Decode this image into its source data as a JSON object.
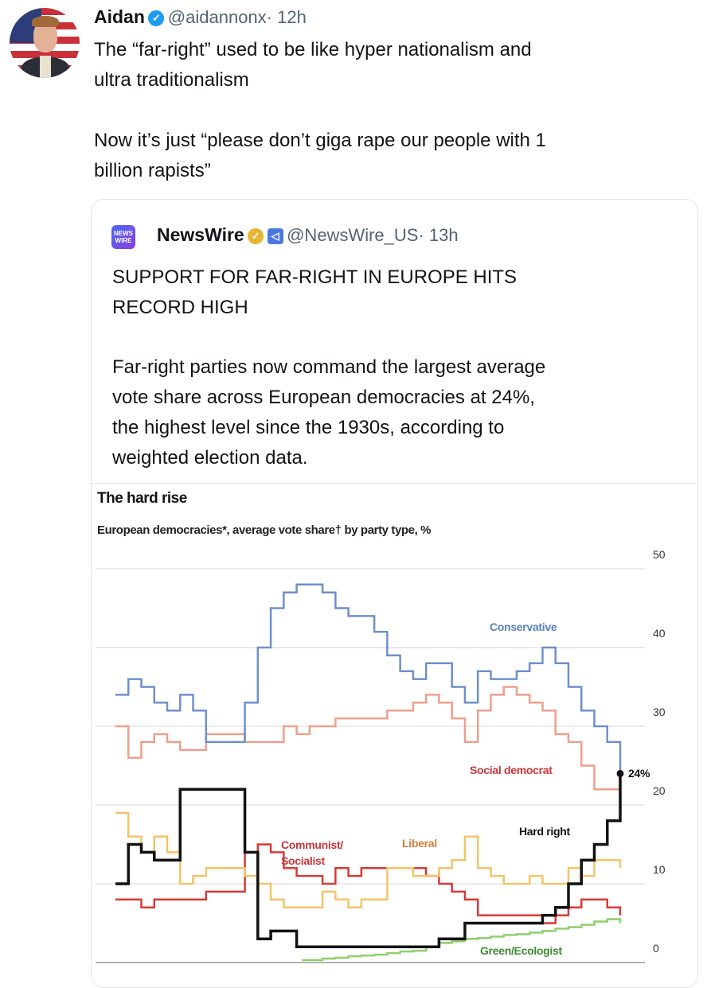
{
  "tweet": {
    "author_name": "Aidan",
    "verified_icon": "verified-badge-icon",
    "handle": "@aidannonx",
    "time": "· 12h",
    "text_lines": [
      "The “far-right” used to be like hyper nationalism and",
      "ultra traditionalism",
      "Now it’s just “please don’t giga rape our people with 1",
      "billion rapists”"
    ]
  },
  "quote": {
    "logo_text": [
      "NEWS",
      "WIRE"
    ],
    "author_name": "NewsWire",
    "handle": "@NewsWire_US",
    "time": "· 13h",
    "headline_lines": [
      "SUPPORT FOR FAR-RIGHT IN EUROPE HITS",
      "RECORD HIGH"
    ],
    "body_lines": [
      "Far-right parties now command the largest average",
      "vote share across European democracies at 24%,",
      "the highest level since the 1930s, according to",
      "weighted election data."
    ]
  },
  "chart_data": {
    "type": "line",
    "title": "The hard rise",
    "subtitle": "European democracies*, average vote share† by party type, %",
    "ylim": [
      0,
      50
    ],
    "yticks": [
      "50",
      "40",
      "30",
      "20",
      "10",
      "0"
    ],
    "grid": true,
    "y_axis_side": "right",
    "end_label": "24%",
    "series": [
      {
        "name": "Conservative",
        "color": "#6f8fcb",
        "values": [
          34,
          36,
          35,
          33,
          32,
          34,
          32,
          28,
          28,
          28,
          33,
          40,
          45,
          47,
          48,
          48,
          47,
          45,
          44,
          44,
          42,
          39,
          37,
          36,
          38,
          38,
          35,
          33,
          37,
          36,
          36,
          37,
          38,
          40,
          38,
          35,
          32,
          30,
          28,
          24
        ]
      },
      {
        "name": "Social democrat",
        "color": "#ee9f8c",
        "values": [
          30,
          26,
          28,
          29,
          28,
          27,
          27,
          29,
          29,
          29,
          28,
          28,
          28,
          30,
          29,
          30,
          30,
          31,
          31,
          31,
          31,
          32,
          32,
          33,
          34,
          33,
          31,
          28,
          32,
          34,
          35,
          34,
          33,
          32,
          29,
          28,
          25,
          22,
          22,
          23
        ]
      },
      {
        "name": "Hard right",
        "color": "#111111",
        "values": [
          10,
          15,
          14,
          13,
          13,
          22,
          22,
          22,
          22,
          22,
          14,
          3,
          4,
          4,
          2,
          2,
          2,
          2,
          2,
          2,
          2,
          2,
          2,
          2,
          2,
          3,
          3,
          5,
          5,
          5,
          5,
          5,
          5,
          6,
          7,
          10,
          13,
          15,
          18,
          24
        ]
      },
      {
        "name": "Liberal",
        "color": "#f2c46a",
        "values": [
          19,
          16,
          14,
          16,
          14,
          10,
          11,
          12,
          12,
          12,
          11,
          10,
          8,
          7,
          7,
          7,
          9,
          8,
          7,
          8,
          8,
          12,
          12,
          11,
          11,
          12,
          13,
          16,
          12,
          11,
          10,
          10,
          11,
          10,
          10,
          12,
          11,
          13,
          13,
          12
        ]
      },
      {
        "name": "Communist/ Socialist",
        "color": "#d63a3a",
        "values": [
          8,
          8,
          7,
          8,
          8,
          8,
          8,
          9,
          9,
          9,
          14,
          15,
          14,
          12,
          11,
          11,
          10,
          12,
          11,
          12,
          12,
          12,
          12,
          12,
          11,
          10,
          9,
          8,
          6,
          6,
          6,
          6,
          6,
          5,
          6,
          7,
          8,
          8,
          7,
          6
        ]
      },
      {
        "name": "Green/Ecologist",
        "color": "#8fcf6e",
        "values": [
          null,
          null,
          null,
          null,
          null,
          null,
          null,
          null,
          null,
          null,
          null,
          null,
          null,
          null,
          null,
          0.3,
          0.5,
          0.6,
          0.8,
          0.9,
          1,
          1.2,
          1.4,
          1.5,
          2,
          2.5,
          2.7,
          3,
          3.1,
          3.3,
          3.5,
          3.6,
          3.8,
          4,
          4.3,
          4.5,
          4.8,
          5.2,
          5.5,
          5
        ]
      }
    ]
  }
}
